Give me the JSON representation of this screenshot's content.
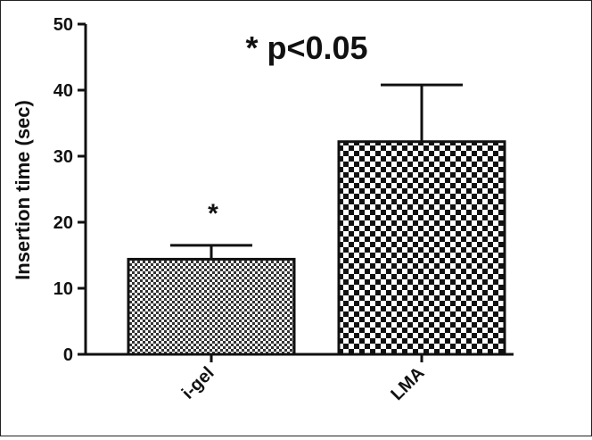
{
  "chart_data": {
    "type": "bar",
    "title": "* p<0.05",
    "xlabel": "",
    "ylabel": "Insertion time (sec)",
    "ylim": [
      0,
      50
    ],
    "yticks": [
      0,
      10,
      20,
      30,
      40,
      50
    ],
    "categories": [
      "i-gel",
      "LMA"
    ],
    "values": [
      14.4,
      32.2
    ],
    "errors": [
      2.1,
      8.6
    ],
    "annotations": [
      {
        "category": "i-gel",
        "text": "*"
      }
    ],
    "colors": {
      "i-gel": "#aaaaaa",
      "LMA": "#111111",
      "axis": "#111111"
    },
    "patterns": {
      "i-gel": "fine-checkerboard",
      "LMA": "coarse-checkerboard"
    },
    "grid": false
  }
}
